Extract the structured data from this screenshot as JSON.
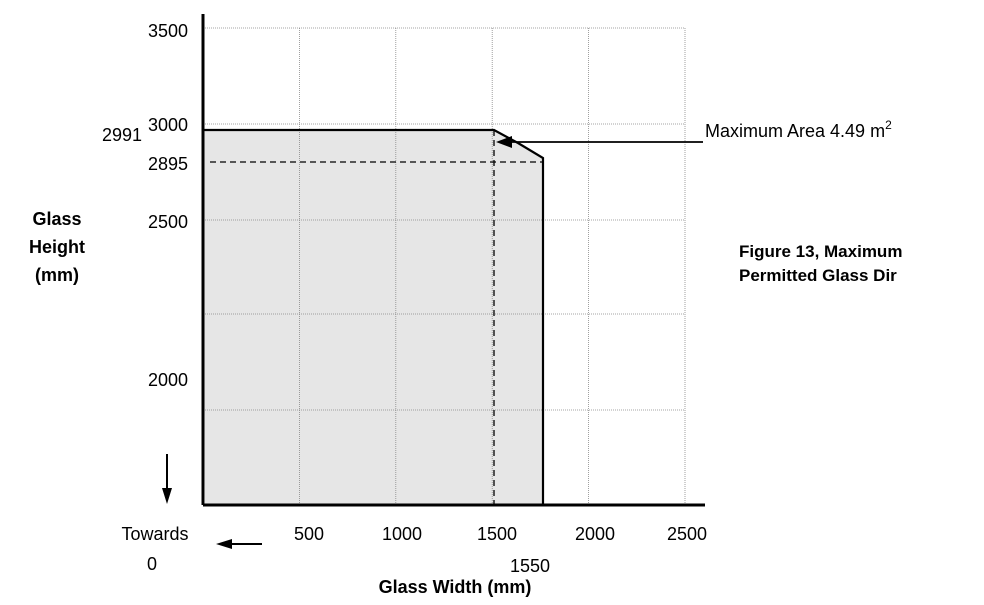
{
  "chart_data": {
    "type": "area",
    "title": "",
    "xlabel": "Glass Width (mm)",
    "ylabel_lines": [
      "Glass",
      "Height",
      "(mm)"
    ],
    "caption_lines": [
      "Figure 13, Maximum",
      "Permitted Glass Dir"
    ],
    "x_ticks": [
      "500",
      "1000",
      "1500",
      "2000",
      "2500"
    ],
    "y_ticks": [
      "3500",
      "3000",
      "2500",
      "2000"
    ],
    "xlim": [
      0,
      2500
    ],
    "ylim_labels": [
      "2000",
      "3500"
    ],
    "grid": true,
    "boundary": {
      "points": [
        [
          0,
          2991
        ],
        [
          1500,
          2991
        ],
        [
          1550,
          2960
        ],
        [
          1750,
          2895
        ],
        [
          1750,
          0
        ]
      ],
      "note": ""
    },
    "dashed_guides": {
      "height_line_y": "2895",
      "width_line_x": "1550"
    },
    "extra_labels": {
      "y_2991": "2991",
      "y_2895": "2895",
      "x_1550": "1550",
      "towards_line1": "Towards",
      "towards_line2": "0"
    },
    "annotation": {
      "text": "Maximum Area 4.49 m",
      "superscript": "2"
    }
  }
}
